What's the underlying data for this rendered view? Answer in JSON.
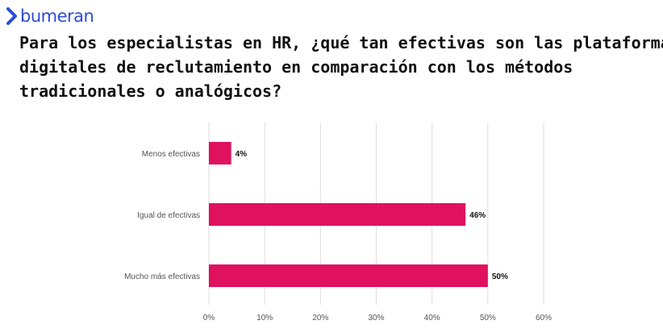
{
  "brand": {
    "name": "bumeran",
    "color": "#2d4bd6",
    "icon": "chevron-right-icon"
  },
  "title_lines": [
    "Para los especialistas en HR, ¿qué tan efectivas son las plataformas",
    "digitales de reclutamiento en comparación con los métodos",
    "tradicionales o analógicos?"
  ],
  "chart_data": {
    "type": "bar",
    "orientation": "horizontal",
    "categories": [
      "Menos efectivas",
      "Igual de efectivas",
      "Mucho más efectivas"
    ],
    "values": [
      4,
      46,
      50
    ],
    "value_labels": [
      "4%",
      "46%",
      "50%"
    ],
    "xlim": [
      0,
      60
    ],
    "xticks": [
      0,
      10,
      20,
      30,
      40,
      50,
      60
    ],
    "xtick_labels": [
      "0%",
      "10%",
      "20%",
      "30%",
      "40%",
      "50%",
      "60%"
    ],
    "grid": true,
    "bar_color": "#e0115f"
  }
}
